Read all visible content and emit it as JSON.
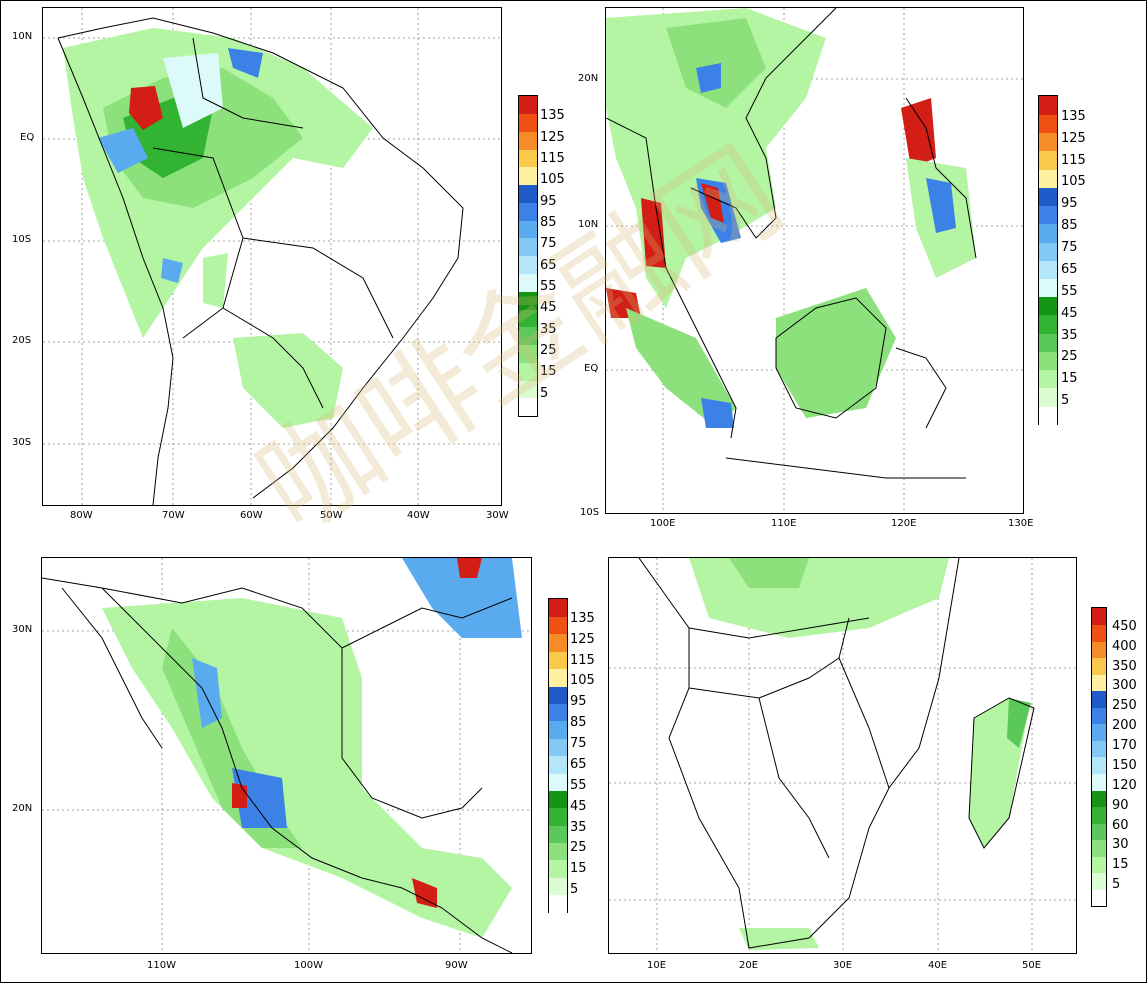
{
  "colors": {
    "scale": [
      "#ffffff",
      "#dcfcd4",
      "#b4f5a4",
      "#8ce17c",
      "#5ac85a",
      "#32b432",
      "#149614",
      "#dcfafa",
      "#b4e6fa",
      "#82c8f5",
      "#5aaaf0",
      "#3c82e6",
      "#1e5ac8",
      "#fff0a0",
      "#fac84b",
      "#f58c28",
      "#f05014",
      "#d21e14"
    ]
  },
  "panels": [
    {
      "id": "south-america",
      "lat_labels": [
        "10N",
        "EQ",
        "10S",
        "20S",
        "30S"
      ],
      "lon_labels": [
        "80W",
        "70W",
        "60W",
        "50W",
        "40W",
        "30W"
      ],
      "colorbar_levels": [
        "5",
        "15",
        "25",
        "35",
        "45",
        "55",
        "65",
        "75",
        "85",
        "95",
        "105",
        "115",
        "125",
        "135"
      ]
    },
    {
      "id": "southeast-asia",
      "lat_labels": [
        "20N",
        "10N",
        "EQ",
        "10S"
      ],
      "lon_labels": [
        "100E",
        "110E",
        "120E",
        "130E"
      ],
      "colorbar_levels": [
        "5",
        "15",
        "25",
        "35",
        "45",
        "55",
        "65",
        "75",
        "85",
        "95",
        "105",
        "115",
        "125",
        "135"
      ]
    },
    {
      "id": "mexico",
      "lat_labels": [
        "30N",
        "20N"
      ],
      "lon_labels": [
        "110W",
        "100W",
        "90W"
      ],
      "colorbar_levels": [
        "5",
        "15",
        "25",
        "35",
        "45",
        "55",
        "65",
        "75",
        "85",
        "95",
        "105",
        "115",
        "125",
        "135"
      ]
    },
    {
      "id": "southern-africa",
      "lat_labels": [],
      "lon_labels": [
        "10E",
        "20E",
        "30E",
        "40E",
        "50E"
      ],
      "colorbar_levels": [
        "5",
        "15",
        "30",
        "60",
        "90",
        "120",
        "150",
        "170",
        "200",
        "250",
        "300",
        "350",
        "400",
        "450"
      ]
    }
  ],
  "watermark": "咖啡金融网"
}
